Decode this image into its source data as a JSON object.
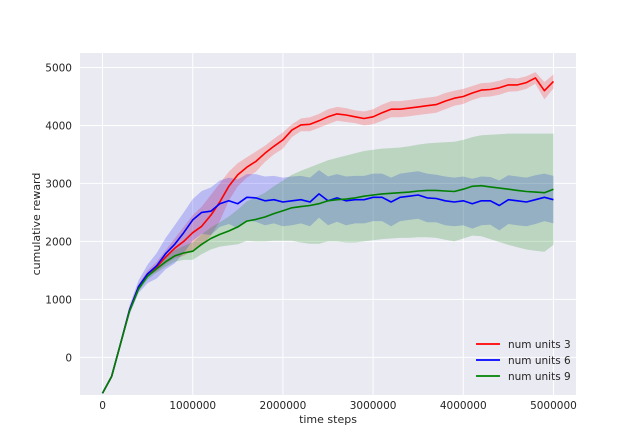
{
  "chart_data": {
    "type": "line",
    "title": "",
    "xlabel": "time steps",
    "ylabel": "cumulative reward",
    "xlim": [
      -250000,
      5250000
    ],
    "ylim": [
      -650,
      5250
    ],
    "grid": true,
    "legend_position": "lower-right",
    "x_ticks": [
      0,
      1000000,
      2000000,
      3000000,
      4000000,
      5000000
    ],
    "x_tick_labels": [
      "0",
      "1000000",
      "2000000",
      "3000000",
      "4000000",
      "5000000"
    ],
    "y_ticks": [
      0,
      1000,
      2000,
      3000,
      4000,
      5000
    ],
    "y_tick_labels": [
      "0",
      "1000",
      "2000",
      "3000",
      "4000",
      "5000"
    ],
    "x": [
      0,
      100000,
      200000,
      300000,
      400000,
      500000,
      600000,
      700000,
      800000,
      900000,
      1000000,
      1100000,
      1200000,
      1300000,
      1400000,
      1500000,
      1600000,
      1700000,
      1800000,
      1900000,
      2000000,
      2100000,
      2200000,
      2300000,
      2400000,
      2500000,
      2600000,
      2700000,
      2800000,
      2900000,
      3000000,
      3100000,
      3200000,
      3300000,
      3400000,
      3500000,
      3600000,
      3700000,
      3800000,
      3900000,
      4000000,
      4100000,
      4200000,
      4300000,
      4400000,
      4500000,
      4600000,
      4700000,
      4800000,
      4900000,
      5000000
    ],
    "series": [
      {
        "name": "num units 3",
        "color": "#ff0000",
        "values": [
          -620,
          -330,
          240,
          820,
          1220,
          1440,
          1560,
          1730,
          1880,
          2000,
          2150,
          2260,
          2450,
          2680,
          2950,
          3150,
          3280,
          3380,
          3520,
          3640,
          3750,
          3920,
          4010,
          4020,
          4080,
          4150,
          4200,
          4180,
          4150,
          4120,
          4150,
          4220,
          4280,
          4280,
          4300,
          4320,
          4340,
          4360,
          4420,
          4470,
          4500,
          4560,
          4610,
          4620,
          4650,
          4700,
          4700,
          4740,
          4820,
          4600,
          4760
        ],
        "band_upper": [
          -600,
          -300,
          280,
          860,
          1260,
          1500,
          1650,
          1850,
          2050,
          2250,
          2450,
          2600,
          2800,
          3000,
          3200,
          3350,
          3450,
          3550,
          3650,
          3770,
          3880,
          4020,
          4120,
          4140,
          4200,
          4280,
          4320,
          4300,
          4260,
          4240,
          4280,
          4360,
          4420,
          4420,
          4440,
          4460,
          4480,
          4500,
          4560,
          4600,
          4630,
          4680,
          4730,
          4740,
          4770,
          4820,
          4810,
          4850,
          4920,
          4750,
          4880
        ],
        "band_lower": [
          -640,
          -360,
          200,
          780,
          1180,
          1400,
          1480,
          1610,
          1710,
          1750,
          1850,
          1920,
          2100,
          2350,
          2700,
          2950,
          3100,
          3200,
          3370,
          3500,
          3600,
          3800,
          3900,
          3900,
          3960,
          4020,
          4080,
          4060,
          4040,
          4000,
          4020,
          4080,
          4140,
          4140,
          4160,
          4180,
          4200,
          4220,
          4280,
          4340,
          4370,
          4440,
          4490,
          4500,
          4530,
          4580,
          4590,
          4630,
          4720,
          4450,
          4640
        ]
      },
      {
        "name": "num units 6",
        "color": "#0000ff",
        "values": [
          -620,
          -330,
          240,
          820,
          1220,
          1440,
          1580,
          1790,
          1950,
          2150,
          2370,
          2500,
          2520,
          2650,
          2700,
          2650,
          2760,
          2750,
          2700,
          2720,
          2680,
          2700,
          2720,
          2680,
          2820,
          2700,
          2750,
          2700,
          2720,
          2720,
          2760,
          2760,
          2680,
          2760,
          2780,
          2800,
          2750,
          2740,
          2700,
          2680,
          2700,
          2650,
          2700,
          2700,
          2620,
          2720,
          2700,
          2680,
          2720,
          2760,
          2720
        ],
        "band_upper": [
          -600,
          -300,
          290,
          900,
          1330,
          1600,
          1800,
          2060,
          2280,
          2500,
          2730,
          2870,
          2930,
          3050,
          3100,
          3070,
          3160,
          3160,
          3120,
          3130,
          3100,
          3120,
          3130,
          3100,
          3230,
          3120,
          3160,
          3120,
          3130,
          3130,
          3170,
          3170,
          3100,
          3170,
          3190,
          3210,
          3170,
          3150,
          3120,
          3100,
          3120,
          3080,
          3120,
          3110,
          3050,
          3140,
          3120,
          3100,
          3140,
          3170,
          3130
        ],
        "band_lower": [
          -640,
          -360,
          190,
          740,
          1110,
          1280,
          1360,
          1520,
          1620,
          1800,
          2010,
          2130,
          2110,
          2250,
          2300,
          2230,
          2360,
          2340,
          2280,
          2310,
          2260,
          2280,
          2310,
          2260,
          2410,
          2280,
          2340,
          2280,
          2310,
          2310,
          2350,
          2350,
          2260,
          2350,
          2370,
          2390,
          2330,
          2330,
          2280,
          2260,
          2280,
          2220,
          2280,
          2290,
          2190,
          2300,
          2280,
          2260,
          2300,
          2350,
          2310
        ]
      },
      {
        "name": "num units 9",
        "color": "#008000",
        "values": [
          -620,
          -330,
          240,
          800,
          1180,
          1400,
          1530,
          1650,
          1750,
          1800,
          1830,
          1950,
          2050,
          2120,
          2180,
          2250,
          2350,
          2380,
          2420,
          2480,
          2530,
          2580,
          2600,
          2620,
          2650,
          2700,
          2720,
          2730,
          2750,
          2780,
          2800,
          2820,
          2830,
          2840,
          2850,
          2870,
          2880,
          2880,
          2870,
          2860,
          2900,
          2950,
          2960,
          2940,
          2920,
          2900,
          2880,
          2860,
          2850,
          2840,
          2900
        ],
        "band_upper": [
          -600,
          -300,
          280,
          840,
          1220,
          1460,
          1600,
          1740,
          1850,
          1920,
          1980,
          2120,
          2240,
          2330,
          2430,
          2550,
          2690,
          2760,
          2840,
          2950,
          3050,
          3150,
          3220,
          3280,
          3340,
          3400,
          3440,
          3480,
          3520,
          3560,
          3580,
          3600,
          3610,
          3620,
          3640,
          3670,
          3690,
          3700,
          3710,
          3720,
          3750,
          3800,
          3830,
          3840,
          3850,
          3860,
          3860,
          3860,
          3860,
          3860,
          3860
        ],
        "band_lower": [
          -640,
          -360,
          200,
          760,
          1140,
          1340,
          1460,
          1560,
          1650,
          1680,
          1680,
          1780,
          1860,
          1910,
          1930,
          1950,
          2010,
          2000,
          2000,
          2010,
          2010,
          2010,
          1980,
          1960,
          1960,
          2000,
          2000,
          1980,
          1980,
          2000,
          2020,
          2040,
          2050,
          2060,
          2060,
          2070,
          2070,
          2060,
          2030,
          2000,
          2050,
          2100,
          2090,
          2040,
          1990,
          1940,
          1900,
          1860,
          1840,
          1820,
          1940
        ]
      }
    ]
  }
}
